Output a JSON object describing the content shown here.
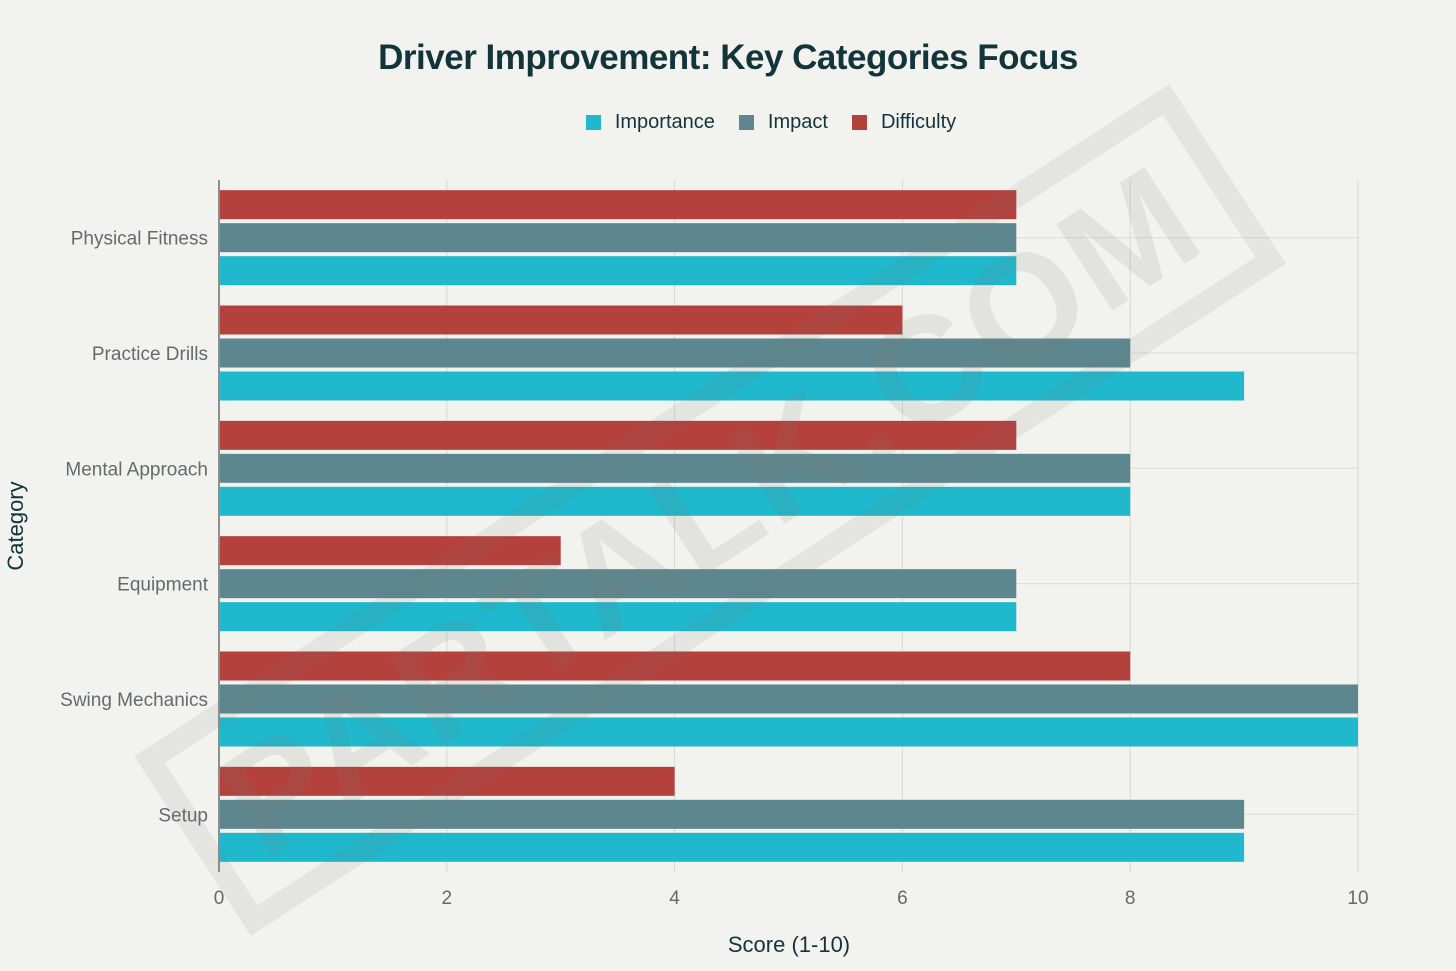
{
  "chart_data": {
    "type": "bar",
    "orientation": "horizontal",
    "title": "Driver Improvement: Key Categories Focus",
    "xlabel": "Score (1-10)",
    "ylabel": "Category",
    "xlim": [
      0,
      10
    ],
    "xticks": [
      "0",
      "2",
      "4",
      "6",
      "8",
      "10"
    ],
    "grid": true,
    "legend_position": "top-center",
    "categories": [
      "Physical Fitness",
      "Practice Drills",
      "Mental Approach",
      "Equipment",
      "Swing Mechanics",
      "Setup"
    ],
    "series": [
      {
        "name": "Importance",
        "color": "#1fb8cd",
        "values": [
          7,
          9,
          8,
          7,
          10,
          9
        ]
      },
      {
        "name": "Impact",
        "color": "#5d878f",
        "values": [
          7,
          8,
          8,
          7,
          10,
          9
        ]
      },
      {
        "name": "Difficulty",
        "color": "#b4413c",
        "values": [
          7,
          6,
          7,
          3,
          8,
          4
        ]
      }
    ]
  },
  "watermark": "PARTALK.COM"
}
